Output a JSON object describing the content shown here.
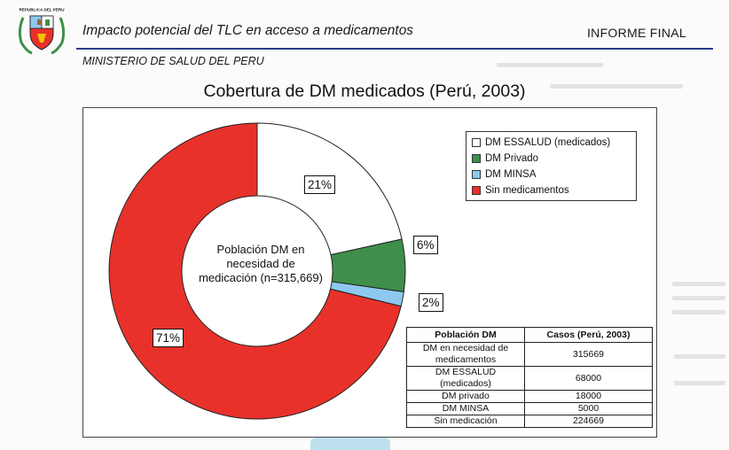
{
  "header": {
    "crest_caption": "REPUBLICA DEL PERU",
    "report_title": "Impacto potencial del TLC en acceso a medicamentos",
    "report_tag": "INFORME FINAL",
    "ministry": "MINISTERIO DE SALUD DEL PERU"
  },
  "colors": {
    "essalud": "#ffffff",
    "privado": "#3f8f4a",
    "minsa": "#8ec8ef",
    "sin": "#e8312a",
    "rule": "#2a3b8f"
  },
  "chart_data": {
    "type": "pie",
    "title": "Cobertura de DM medicados (Perú, 2003)",
    "center_label": "Población DM en necesidad de medicación (n=315,669)",
    "legend_position": "top-right",
    "slices": [
      {
        "name": "DM ESSALUD (medicados)",
        "value": 68000,
        "label": "21%",
        "color": "#ffffff"
      },
      {
        "name": "DM Privado",
        "value": 18000,
        "label": "6%",
        "color": "#3f8f4a"
      },
      {
        "name": "DM MINSA",
        "value": 5000,
        "label": "2%",
        "color": "#8ec8ef"
      },
      {
        "name": "Sin medicamentos",
        "value": 224669,
        "label": "71%",
        "color": "#e8312a"
      }
    ]
  },
  "table": {
    "headers": [
      "Población DM",
      "Casos (Perú, 2003)"
    ],
    "rows": [
      {
        "label": "DM en necesidad de medicamentos",
        "value": "315669"
      },
      {
        "label": "DM ESSALUD (medicados)",
        "value": "68000"
      },
      {
        "label": "DM privado",
        "value": "18000"
      },
      {
        "label": "DM MINSA",
        "value": "5000"
      },
      {
        "label": "Sin medicación",
        "value": "224669"
      }
    ]
  }
}
